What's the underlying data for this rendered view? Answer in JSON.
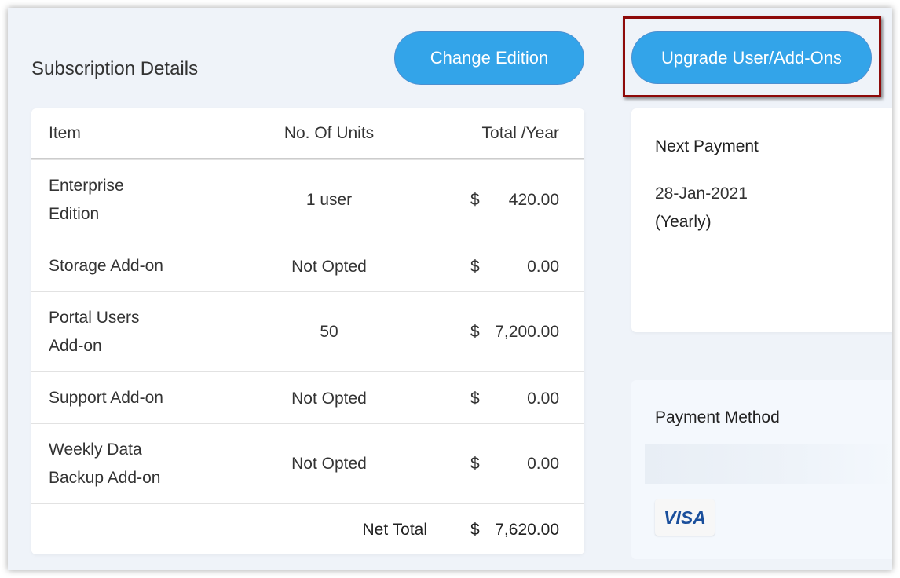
{
  "title": "Subscription Details",
  "buttons": {
    "change_edition": "Change Edition",
    "upgrade": "Upgrade User/Add-Ons"
  },
  "table": {
    "headers": [
      "Item",
      "No. Of Units",
      "Total /Year"
    ],
    "rows": [
      {
        "item": "Enterprise Edition",
        "units": "1 user",
        "currency": "$",
        "amount": "420.00"
      },
      {
        "item": "Storage Add-on",
        "units": "Not Opted",
        "currency": "$",
        "amount": "0.00"
      },
      {
        "item": "Portal Users Add-on",
        "units": "50",
        "currency": "$",
        "amount": "7,200.00"
      },
      {
        "item": "Support Add-on",
        "units": "Not Opted",
        "currency": "$",
        "amount": "0.00"
      },
      {
        "item": "Weekly Data Backup Add-on",
        "units": "Not Opted",
        "currency": "$",
        "amount": "0.00"
      }
    ],
    "net_total_label": "Net Total",
    "net_total_currency": "$",
    "net_total": "7,620.00"
  },
  "next_payment": {
    "label": "Next Payment",
    "date": "28-Jan-2021",
    "cycle": "(Yearly)"
  },
  "payment_method": {
    "label": "Payment Method",
    "card_brand": "VISA"
  },
  "colors": {
    "button": "#33a4e9",
    "highlight": "#8e0a0a",
    "background": "#eff3f9"
  }
}
